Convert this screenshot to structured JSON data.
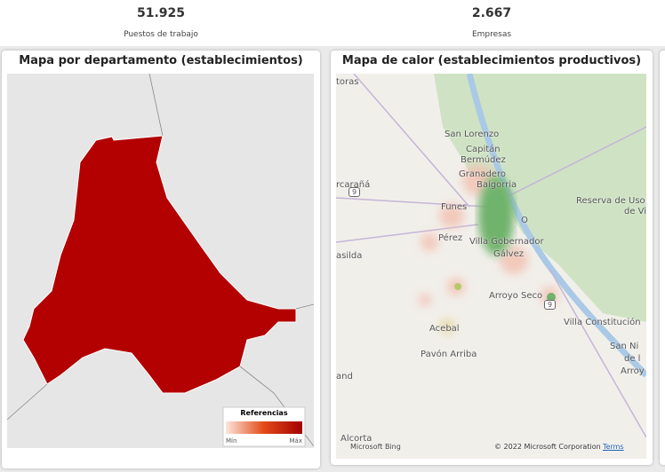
{
  "kpis": [
    {
      "value": "51.925",
      "label": "Puestos de trabajo"
    },
    {
      "value": "2.667",
      "label": "Empresas"
    }
  ],
  "panels": [
    {
      "title": "Mapa por departamento (establecimientos)",
      "legend": {
        "title": "Referencias",
        "min": "Mín",
        "max": "Máx"
      }
    },
    {
      "title": "Mapa de calor (establecimientos productivos)",
      "places": [
        "toras",
        "San Lorenzo",
        "Capitán",
        "Bermúdez",
        "Granadero",
        "Baigorria",
        "rcarañá",
        "Funes",
        "Pérez",
        "Villa Gobernador",
        "Gálvez",
        "asilda",
        "Arroyo Seco",
        "Villa Constitución",
        "Acebal",
        "Pavón Arriba",
        "and",
        "Alcorta",
        "Reserva de Uso M",
        "de Vict",
        "San Ni",
        "de l",
        "Arroy",
        "O"
      ],
      "shields": [
        "9",
        "9"
      ],
      "copyright": "© 2022 Microsoft Corporation",
      "terms": "Terms",
      "brand": "Microsoft Bing"
    }
  ]
}
